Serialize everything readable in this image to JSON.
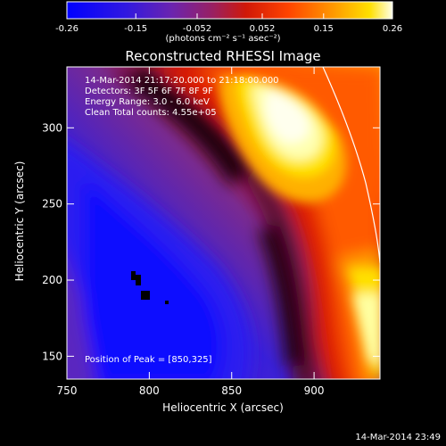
{
  "chart_data": {
    "type": "heatmap",
    "title": "Reconstructed RHESSI Image",
    "xlabel": "Heliocentric X (arcsec)",
    "ylabel": "Heliocentric Y (arcsec)",
    "xlim": [
      750,
      940
    ],
    "ylim": [
      135,
      340
    ],
    "x_ticks": [
      "750",
      "800",
      "850",
      "900"
    ],
    "x_tick_values": [
      750,
      800,
      850,
      900
    ],
    "y_ticks": [
      "150",
      "200",
      "250",
      "300"
    ],
    "y_tick_values": [
      150,
      200,
      250,
      300
    ],
    "colorbar": {
      "ticks": [
        "-0.26",
        "-0.15",
        "-0.052",
        "0.052",
        "0.15",
        "0.26"
      ],
      "tick_values": [
        -0.26,
        -0.15,
        -0.052,
        0.052,
        0.15,
        0.26
      ],
      "range": [
        -0.26,
        0.26
      ],
      "units_label": "(photons cm⁻² s⁻¹ asec⁻²)",
      "colormap": [
        "#0000ff",
        "#5a22d0",
        "#8a2a88",
        "#c01010",
        "#ff3000",
        "#ff8a00",
        "#ffd400",
        "#ffffe0"
      ]
    },
    "annotations": {
      "date": "14-Mar-2014 21:17:20.000 to 21:18:00.000",
      "detectors": "Detectors: 3F 5F 6F 7F 8F 9F",
      "energy": "Energy Range: 3.0 - 6.0 keV",
      "clean": "Clean     Total counts: 4.55e+05",
      "peak": "Position of Peak = [850,325]"
    },
    "peak_position": [
      850,
      325
    ],
    "limb_line_color": "#ffffff"
  },
  "footer": {
    "timestamp": "14-Mar-2014 23:49"
  }
}
